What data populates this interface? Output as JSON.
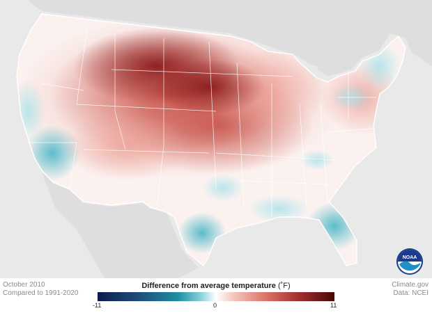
{
  "legend": {
    "title": "Difference from average temperature",
    "unit": "(˚F)",
    "min_label": "-11",
    "mid_label": "0",
    "max_label": "11",
    "color_low": "#0c1d4d",
    "color_mid": "#ffffff",
    "color_high": "#4a0606"
  },
  "footer": {
    "period": "October 2010",
    "baseline": "Compared to 1991-2020",
    "source_site": "Climate.gov",
    "data_source": "Data: NCEI"
  },
  "logo": {
    "text": "NOAA",
    "icon": "noaa-logo-icon"
  },
  "map": {
    "background_color": "#e9e9e9",
    "land_color": "#dcdcdc",
    "border_color": "#ffffff"
  }
}
